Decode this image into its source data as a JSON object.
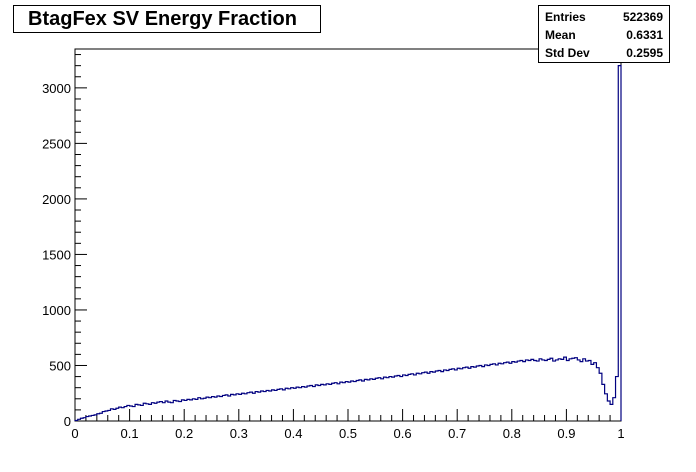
{
  "chart_data": {
    "type": "histogram",
    "title": "BtagFex SV Energy Fraction",
    "xlabel": "",
    "ylabel": "",
    "xlim": [
      0,
      1
    ],
    "ylim": [
      0,
      3350
    ],
    "bins": 200,
    "bin_width": 0.005,
    "x_ticks": [
      "0",
      "0.1",
      "0.2",
      "0.3",
      "0.4",
      "0.5",
      "0.6",
      "0.7",
      "0.8",
      "0.9",
      "1"
    ],
    "y_ticks": [
      "0",
      "500",
      "1000",
      "1500",
      "2000",
      "2500",
      "3000"
    ],
    "grid": false,
    "line_color": "#000080",
    "values": [
      5,
      15,
      25,
      30,
      40,
      45,
      50,
      55,
      65,
      70,
      85,
      90,
      95,
      110,
      105,
      115,
      125,
      120,
      130,
      140,
      135,
      130,
      150,
      145,
      140,
      160,
      155,
      150,
      165,
      160,
      170,
      175,
      165,
      180,
      170,
      165,
      185,
      180,
      175,
      190,
      185,
      195,
      190,
      200,
      195,
      210,
      200,
      205,
      215,
      210,
      220,
      215,
      225,
      220,
      230,
      235,
      225,
      240,
      235,
      245,
      240,
      250,
      245,
      255,
      260,
      250,
      265,
      260,
      270,
      265,
      275,
      270,
      280,
      275,
      285,
      290,
      280,
      295,
      290,
      300,
      295,
      305,
      300,
      310,
      305,
      315,
      320,
      310,
      325,
      320,
      330,
      325,
      335,
      330,
      340,
      345,
      335,
      350,
      345,
      355,
      350,
      360,
      355,
      365,
      370,
      360,
      375,
      370,
      380,
      375,
      385,
      390,
      380,
      395,
      390,
      400,
      395,
      405,
      410,
      400,
      415,
      410,
      420,
      425,
      415,
      430,
      425,
      435,
      440,
      430,
      445,
      440,
      450,
      455,
      445,
      460,
      455,
      465,
      470,
      460,
      475,
      470,
      480,
      485,
      475,
      490,
      485,
      495,
      500,
      490,
      505,
      500,
      510,
      515,
      505,
      520,
      515,
      525,
      530,
      520,
      535,
      530,
      540,
      545,
      535,
      550,
      545,
      555,
      545,
      540,
      560,
      550,
      545,
      555,
      565,
      540,
      550,
      560,
      555,
      575,
      545,
      560,
      565,
      570,
      550,
      535,
      560,
      540,
      545,
      510,
      525,
      480,
      430,
      330,
      245,
      180,
      150,
      210,
      400,
      3200
    ],
    "stats": {
      "entries_label": "Entries",
      "entries_value": "522369",
      "mean_label": "Mean",
      "mean_value": "0.6331",
      "std_label": "Std Dev",
      "std_value": "0.2595"
    }
  }
}
